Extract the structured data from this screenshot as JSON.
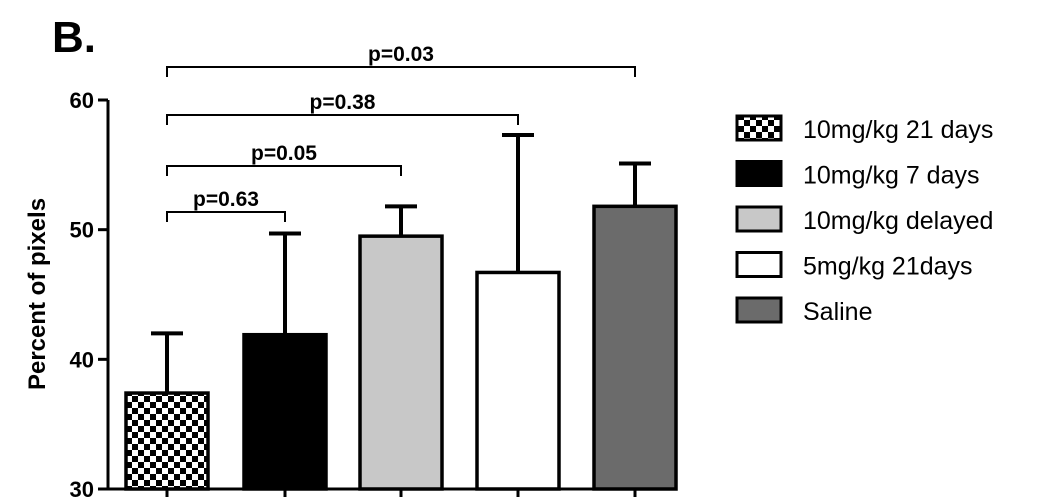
{
  "panel_label": "B.",
  "chart_data": {
    "type": "bar",
    "ylabel": "Percent of pixels",
    "ylim": [
      30,
      60
    ],
    "yticks": [
      30,
      40,
      50,
      60
    ],
    "grid": false,
    "legend_position": "right",
    "categories": [
      "10mg/kg 21 days",
      "10mg/kg 7 days",
      "10mg/kg delayed",
      "5mg/kg 21days",
      "Saline"
    ],
    "values": [
      37.4,
      41.9,
      49.5,
      46.7,
      51.8
    ],
    "error_upper": [
      42.0,
      49.7,
      51.8,
      57.3,
      55.1
    ],
    "fills": [
      "checkerboard",
      "#000000",
      "#c8c8c8",
      "#ffffff",
      "#6b6b6b"
    ],
    "significance": [
      {
        "from": 0,
        "to": 1,
        "label": "p=0.63"
      },
      {
        "from": 0,
        "to": 2,
        "label": "p=0.05"
      },
      {
        "from": 0,
        "to": 3,
        "label": "p=0.38"
      },
      {
        "from": 0,
        "to": 4,
        "label": "p=0.03"
      }
    ]
  }
}
